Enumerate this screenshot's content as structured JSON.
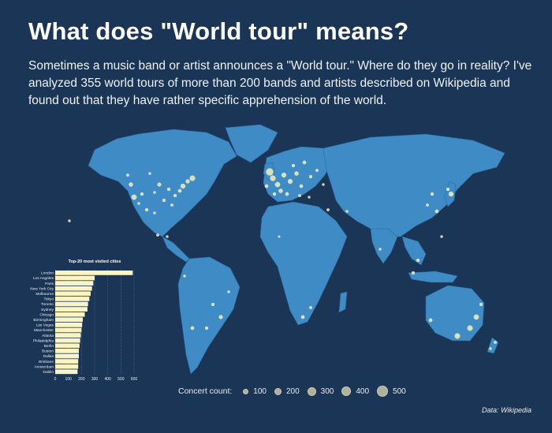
{
  "title": "What does \"World tour\" means?",
  "intro": "Sometimes a music band or artist announces a \"World tour.\" Where do they go in reality? I've analyzed 355 world tours of more than 200 bands and artists described on Wikipedia and found out that they have rather specific apprehension of the world.",
  "legend": {
    "label": "Concert count:",
    "items": [
      {
        "label": "100",
        "value": 100
      },
      {
        "label": "200",
        "value": 200
      },
      {
        "label": "300",
        "value": 300
      },
      {
        "label": "400",
        "value": 400
      },
      {
        "label": "500",
        "value": 500
      }
    ]
  },
  "source": "Data: Wikipedia",
  "colors": {
    "background": "#1b3556",
    "land": "#3f8bc6",
    "dots": "#f6efb6",
    "bars": "#fbf5c5"
  },
  "chart_data": {
    "type": "bar",
    "orientation": "horizontal",
    "title": "Top-20 most visited cities",
    "categories": [
      "London",
      "Los Angeles",
      "Paris",
      "New York City",
      "Melbourne",
      "Tokyo",
      "Toronto",
      "Sydney",
      "Chicago",
      "Birmingham",
      "Las Vegas",
      "Manchester",
      "Atlanta",
      "Philadelphia",
      "Berlin",
      "Boston",
      "Dallas",
      "Brisbane",
      "Amsterdam",
      "Dublin"
    ],
    "values": [
      590,
      300,
      290,
      280,
      270,
      260,
      250,
      245,
      225,
      210,
      205,
      200,
      195,
      190,
      185,
      180,
      180,
      175,
      175,
      170
    ],
    "xticks": [
      "0",
      "100",
      "200",
      "300",
      "400",
      "500",
      "600"
    ],
    "xlim": [
      0,
      600
    ]
  }
}
